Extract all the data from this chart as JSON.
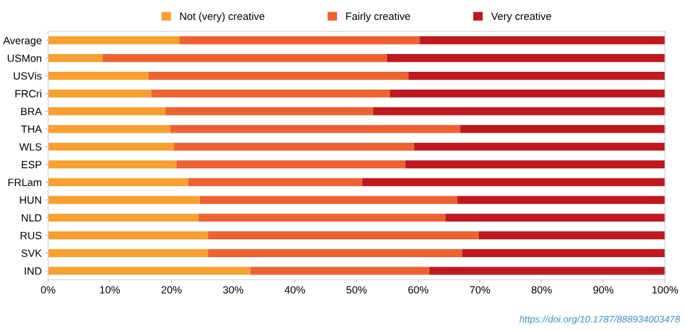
{
  "chart_data": {
    "type": "bar",
    "orientation": "horizontal",
    "stacked": true,
    "categories": [
      "Average",
      "USMon",
      "USVis",
      "FRCri",
      "BRA",
      "THA",
      "WLS",
      "ESP",
      "FRLam",
      "HUN",
      "NLD",
      "RUS",
      "SVK",
      "IND"
    ],
    "series": [
      {
        "name": "Not (very) creative",
        "color": "#f7a030",
        "values": [
          21.3,
          8.8,
          16.3,
          16.7,
          19.0,
          19.8,
          20.4,
          20.8,
          22.7,
          24.6,
          24.4,
          25.9,
          25.9,
          32.8
        ]
      },
      {
        "name": "Fairly creative",
        "color": "#ee6231",
        "values": [
          38.9,
          46.1,
          42.1,
          38.7,
          33.7,
          47.0,
          38.9,
          37.1,
          28.2,
          41.7,
          40.0,
          43.9,
          41.2,
          29.0
        ]
      },
      {
        "name": "Very creative",
        "color": "#c0181f",
        "values": [
          39.8,
          45.1,
          41.6,
          44.6,
          47.3,
          33.2,
          40.7,
          42.1,
          49.1,
          33.7,
          35.6,
          30.2,
          32.9,
          38.2
        ]
      }
    ],
    "xlim": [
      0,
      100
    ],
    "xticks": [
      {
        "value": 0,
        "label": "0%"
      },
      {
        "value": 10,
        "label": "10%"
      },
      {
        "value": 20,
        "label": "20%"
      },
      {
        "value": 30,
        "label": "30%"
      },
      {
        "value": 40,
        "label": "40%"
      },
      {
        "value": 50,
        "label": "50%"
      },
      {
        "value": 60,
        "label": "60%"
      },
      {
        "value": 70,
        "label": "70%"
      },
      {
        "value": 80,
        "label": "80%"
      },
      {
        "value": 90,
        "label": "90%"
      },
      {
        "value": 100,
        "label": "100%"
      }
    ],
    "legend": "top",
    "grid": false,
    "annotations": [
      "https://doi.org/10.1787/888934003478"
    ]
  }
}
